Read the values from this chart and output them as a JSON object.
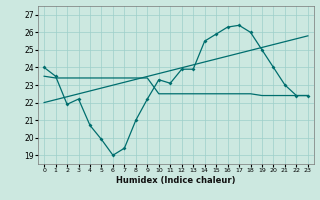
{
  "xlabel": "Humidex (Indice chaleur)",
  "bg_color": "#cce8e0",
  "line_color": "#006e6e",
  "grid_color": "#9ecfca",
  "xlim": [
    -0.5,
    23.5
  ],
  "ylim": [
    18.5,
    27.5
  ],
  "xticks": [
    0,
    1,
    2,
    3,
    4,
    5,
    6,
    7,
    8,
    9,
    10,
    11,
    12,
    13,
    14,
    15,
    16,
    17,
    18,
    19,
    20,
    21,
    22,
    23
  ],
  "yticks": [
    19,
    20,
    21,
    22,
    23,
    24,
    25,
    26,
    27
  ],
  "line1_x": [
    0,
    1,
    2,
    3,
    4,
    5,
    6,
    7,
    8,
    9,
    10,
    11,
    12,
    13,
    14,
    15,
    16,
    17,
    18,
    19,
    20,
    21,
    22,
    23
  ],
  "line1_y": [
    24.0,
    23.5,
    21.9,
    22.2,
    20.7,
    19.9,
    19.0,
    19.4,
    21.0,
    22.2,
    23.3,
    23.1,
    23.9,
    23.9,
    25.5,
    25.9,
    26.3,
    26.4,
    26.0,
    25.0,
    24.0,
    23.0,
    22.4,
    22.4
  ],
  "line2_x": [
    0,
    1,
    2,
    3,
    4,
    5,
    6,
    7,
    8,
    9,
    10,
    11,
    12,
    13,
    14,
    15,
    16,
    17,
    18,
    19,
    20,
    21,
    22,
    23
  ],
  "line2_y": [
    23.5,
    23.4,
    23.4,
    23.4,
    23.4,
    23.4,
    23.4,
    23.4,
    23.4,
    23.4,
    22.5,
    22.5,
    22.5,
    22.5,
    22.5,
    22.5,
    22.5,
    22.5,
    22.5,
    22.4,
    22.4,
    22.4,
    22.4,
    22.4
  ],
  "line3_x": [
    0,
    23
  ],
  "line3_y": [
    22.0,
    25.8
  ]
}
